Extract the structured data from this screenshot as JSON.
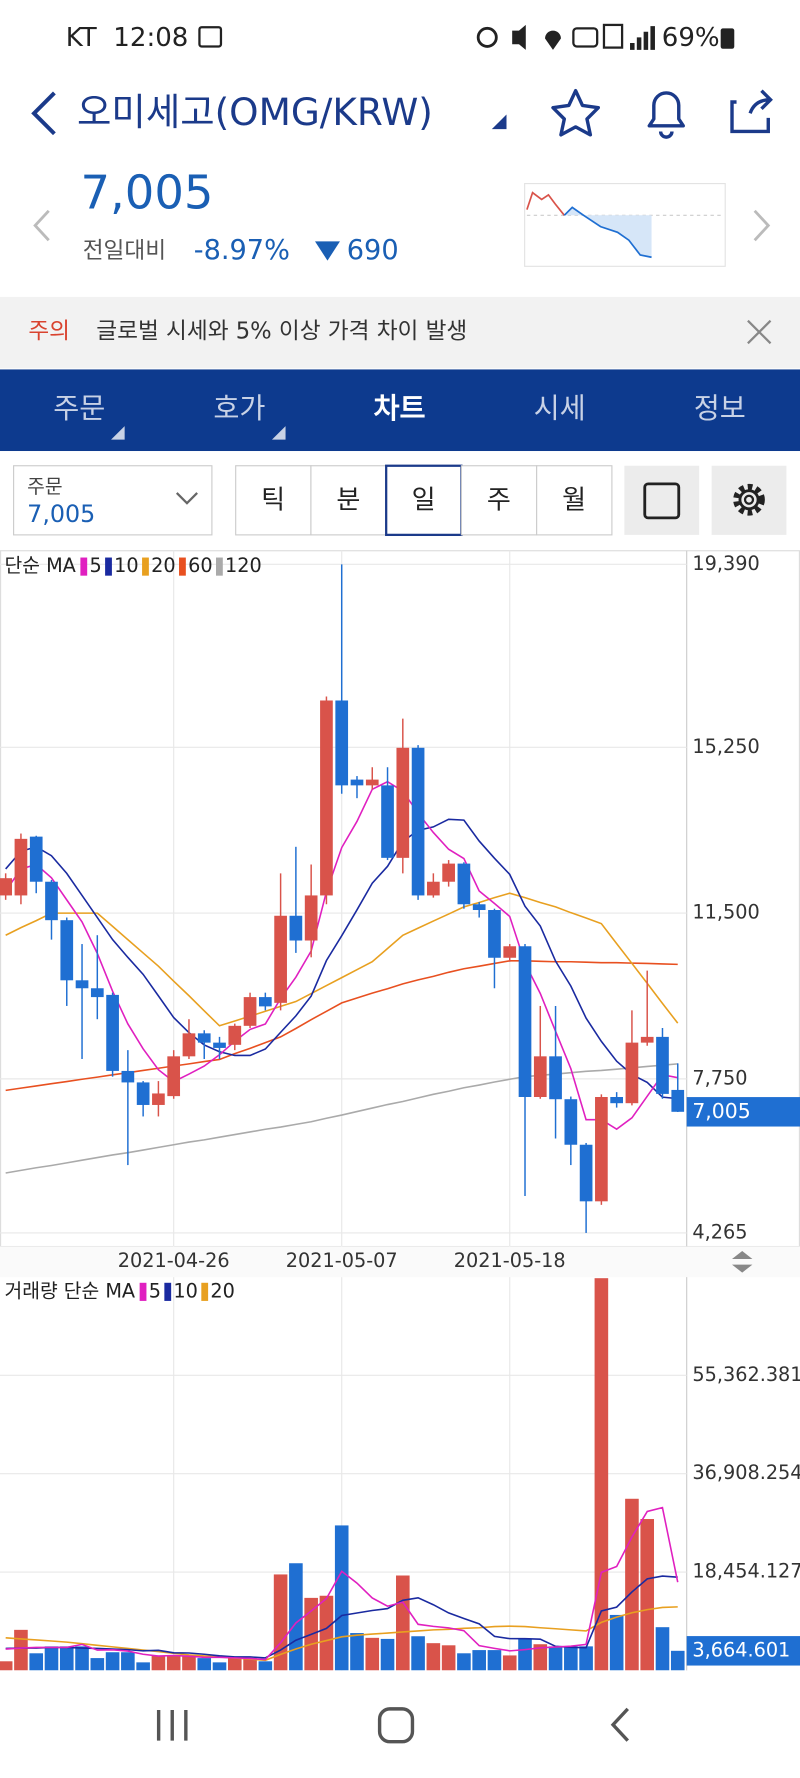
{
  "status_bar": {
    "carrier": "KT",
    "time": "12:08",
    "battery": "69%"
  },
  "header": {
    "title": "오미세고(OMG/KRW)"
  },
  "quote": {
    "price": "7,005",
    "change_label": "전일대비",
    "change_rate": "-8.97%",
    "change_amount": "690"
  },
  "notice": {
    "tag": "주의",
    "text": "글로벌 시세와 5% 이상 가격 차이 발생"
  },
  "tabs": [
    "주문",
    "호가",
    "차트",
    "시세",
    "정보"
  ],
  "order_box": {
    "label": "주문",
    "value": "7,005"
  },
  "periods": [
    "틱",
    "분",
    "일",
    "주",
    "월"
  ],
  "chart_data": [
    {
      "type": "candlestick",
      "legend_title": "단순 MA",
      "categories": [
        null,
        null,
        null,
        null,
        null,
        null,
        null,
        null,
        null,
        null,
        null,
        "2021-04-26",
        null,
        null,
        null,
        null,
        null,
        null,
        null,
        null,
        null,
        null,
        "2021-05-07",
        null,
        null,
        null,
        null,
        null,
        null,
        null,
        null,
        null,
        null,
        "2021-05-18",
        null,
        null,
        null,
        null,
        null,
        null,
        null,
        null,
        null,
        null,
        null
      ],
      "open": [
        11900,
        11900,
        13230,
        12210,
        11340,
        9980,
        9800,
        9650,
        7930,
        7670,
        7160,
        7360,
        8260,
        8780,
        8570,
        8520,
        8950,
        9600,
        9470,
        11440,
        10880,
        11900,
        16310,
        14520,
        14390,
        14390,
        12750,
        15240,
        11900,
        12210,
        12620,
        11700,
        11570,
        10490,
        10750,
        7340,
        8260,
        7290,
        6260,
        4980,
        7340,
        7200,
        8570,
        8700,
        7500
      ],
      "high": [
        12400,
        13300,
        13250,
        12250,
        11400,
        10800,
        11000,
        9700,
        8400,
        7700,
        7700,
        8400,
        9100,
        8850,
        8700,
        9000,
        9700,
        9700,
        12400,
        13000,
        12600,
        16400,
        19390,
        14600,
        14800,
        14800,
        15900,
        15300,
        12400,
        12700,
        12650,
        11750,
        11600,
        10800,
        10800,
        9400,
        9400,
        7350,
        6300,
        7400,
        7450,
        9300,
        10200,
        8900,
        8100
      ],
      "low": [
        11800,
        11700,
        11950,
        10900,
        9400,
        8200,
        9100,
        7800,
        5800,
        6900,
        6900,
        7300,
        8200,
        8200,
        8200,
        8400,
        8900,
        9300,
        9300,
        10600,
        10500,
        11700,
        14200,
        14100,
        14300,
        12700,
        12400,
        11800,
        11850,
        12100,
        11600,
        11400,
        9800,
        10400,
        5100,
        7300,
        6400,
        5800,
        4265,
        4900,
        7100,
        7150,
        8500,
        7300,
        7000
      ],
      "close": [
        12290,
        13180,
        12210,
        11340,
        9980,
        9800,
        9600,
        7930,
        7670,
        7160,
        7420,
        8260,
        8780,
        8570,
        8450,
        8950,
        9600,
        9390,
        11440,
        10880,
        11900,
        16310,
        14390,
        14390,
        14520,
        12750,
        15240,
        11900,
        12210,
        12620,
        11700,
        11570,
        10490,
        10750,
        7340,
        8260,
        7290,
        6260,
        4980,
        7340,
        7200,
        8570,
        8700,
        7410,
        7005
      ],
      "up_color": "#d9534a",
      "down_color": "#1f6fd2",
      "series": [
        {
          "name": "5",
          "color": "#e020c0",
          "values": [
            12000,
            12500,
            12600,
            12300,
            11800,
            11302,
            10586,
            9730,
            8996,
            8432,
            7956,
            7688,
            7858,
            8038,
            8296,
            8602,
            8870,
            8992,
            9566,
            10052,
            10642,
            11984,
            12984,
            13574,
            14302,
            14472,
            14258,
            13760,
            13324,
            12944,
            12734,
            12000,
            11718,
            11426,
            10370,
            9682,
            8826,
            7980,
            6826,
            6826,
            6614,
            6870,
            7358,
            7844,
            7777
          ]
        },
        {
          "name": "10",
          "color": "#1a2aa0",
          "values": [
            12500,
            12900,
            13000,
            12800,
            12400,
            11900,
            11400,
            10900,
            10500,
            10116,
            9629,
            9137,
            8794,
            8517,
            8364,
            8279,
            8279,
            8425,
            8802,
            9174,
            9622,
            10427,
            10988,
            11570,
            12177,
            12557,
            13121,
            13372,
            13449,
            13623,
            13603,
            13129,
            12739,
            12375,
            11657,
            11208,
            10413,
            9849,
            9126,
            8598,
            8148,
            7848,
            7669,
            7335,
            7302
          ]
        },
        {
          "name": "20",
          "color": "#e8a020",
          "values": [
            11000,
            11170,
            11330,
            11500,
            11500,
            11500,
            11500,
            11200,
            10900,
            10600,
            10300,
            9960,
            9630,
            9290,
            8950,
            9060,
            9170,
            9280,
            9390,
            9500,
            9680,
            9860,
            10040,
            10220,
            10400,
            10700,
            11000,
            11160,
            11320,
            11480,
            11640,
            11740,
            11850,
            11950,
            11850,
            11740,
            11640,
            11510,
            11390,
            11260,
            10810,
            10360,
            9910,
            9460,
            9010
          ]
        },
        {
          "name": "60",
          "color": "#e85020",
          "values": [
            7490,
            7540,
            7590,
            7640,
            7690,
            7740,
            7790,
            7840,
            7890,
            7940,
            7990,
            8040,
            8090,
            8140,
            8190,
            8320,
            8440,
            8570,
            8700,
            8890,
            9090,
            9280,
            9470,
            9580,
            9690,
            9790,
            9900,
            9990,
            10070,
            10160,
            10240,
            10300,
            10360,
            10420,
            10420,
            10410,
            10400,
            10400,
            10390,
            10380,
            10380,
            10370,
            10360,
            10350,
            10340
          ]
        },
        {
          "name": "120",
          "color": "#aaaaaa",
          "values": [
            5620,
            5680,
            5740,
            5790,
            5850,
            5910,
            5970,
            6030,
            6080,
            6140,
            6200,
            6260,
            6320,
            6370,
            6430,
            6490,
            6550,
            6610,
            6660,
            6720,
            6780,
            6860,
            6930,
            7010,
            7090,
            7170,
            7240,
            7320,
            7400,
            7470,
            7550,
            7610,
            7680,
            7740,
            7800,
            7830,
            7860,
            7890,
            7920,
            7940,
            7970,
            8000,
            8030,
            8060,
            8090
          ]
        }
      ],
      "ylim": [
        4265,
        19390
      ],
      "yticks": [
        {
          "value": 4265,
          "label": "4,265"
        },
        {
          "value": 7750,
          "label": "7,750"
        },
        {
          "value": 11500,
          "label": "11,500"
        },
        {
          "value": 15250,
          "label": "15,250"
        },
        {
          "value": 19390,
          "label": "19,390"
        }
      ],
      "current": {
        "value": 7005,
        "label": "7,005"
      },
      "grid": true
    },
    {
      "type": "bar",
      "legend_title": "거래량 단순 MA",
      "values": [
        1700,
        7600,
        3200,
        4500,
        4500,
        4500,
        2300,
        3400,
        3400,
        1500,
        2800,
        2800,
        2800,
        2300,
        1500,
        2300,
        2300,
        1700,
        18000,
        20100,
        13600,
        14000,
        27200,
        7000,
        6100,
        5900,
        17800,
        6400,
        5100,
        4700,
        3200,
        3800,
        3800,
        2800,
        5900,
        4900,
        4500,
        4500,
        4500,
        73600,
        10400,
        32200,
        28400,
        8100,
        3664.601
      ],
      "series": [
        {
          "name": "5",
          "color": "#e020c0",
          "values": [
            4000,
            4200,
            4300,
            4300,
            4300,
            4860,
            3800,
            3840,
            3620,
            3020,
            2680,
            2780,
            2660,
            2440,
            2440,
            2340,
            2240,
            2020,
            5160,
            8880,
            11140,
            13480,
            18580,
            16380,
            13580,
            12040,
            12800,
            8640,
            8260,
            7980,
            7440,
            4640,
            4120,
            3660,
            3900,
            4240,
            4380,
            4520,
            4860,
            18400,
            19500,
            25040,
            29820,
            30540,
            16553
          ]
        },
        {
          "name": "10",
          "color": "#1a2aa0",
          "values": [
            4100,
            4200,
            4200,
            4300,
            4300,
            4200,
            4100,
            4000,
            3900,
            3660,
            3770,
            3290,
            3250,
            3030,
            2730,
            2510,
            2510,
            2340,
            3800,
            5660,
            6740,
            7860,
            10300,
            10770,
            11230,
            11590,
            13140,
            13610,
            12320,
            10780,
            9740,
            8720,
            6380,
            5960,
            5940,
            5840,
            4510,
            4320,
            4260,
            11150,
            11870,
            14710,
            17170,
            17700,
            17477
          ]
        },
        {
          "name": "20",
          "color": "#e8a020",
          "values": [
            6100,
            5900,
            5700,
            5500,
            5300,
            5000,
            4700,
            4400,
            4100,
            3800,
            3500,
            3200,
            2900,
            2700,
            2500,
            2300,
            2100,
            1900,
            3000,
            4000,
            4900,
            5600,
            6300,
            6600,
            6800,
            7000,
            7200,
            7400,
            7600,
            7700,
            7900,
            8000,
            8200,
            8300,
            8200,
            8000,
            7800,
            7600,
            7400,
            9000,
            10000,
            10800,
            11400,
            11800,
            11900
          ]
        }
      ],
      "ylim": [
        0,
        73800
      ],
      "yticks": [
        {
          "value": 18454.127,
          "label": "18,454.127"
        },
        {
          "value": 36908.254,
          "label": "36,908.254"
        },
        {
          "value": 55362.381,
          "label": "55,362.381"
        }
      ],
      "current": {
        "value": 3664.601,
        "label": "3,664.601"
      },
      "grid": true
    }
  ]
}
